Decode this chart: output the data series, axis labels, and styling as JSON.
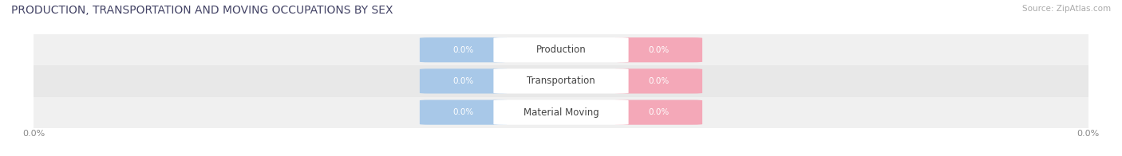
{
  "title": "PRODUCTION, TRANSPORTATION AND MOVING OCCUPATIONS BY SEX",
  "source_text": "Source: ZipAtlas.com",
  "categories": [
    "Production",
    "Transportation",
    "Material Moving"
  ],
  "male_values": [
    0.0,
    0.0,
    0.0
  ],
  "female_values": [
    0.0,
    0.0,
    0.0
  ],
  "male_color": "#a8c8e8",
  "female_color": "#f4a8b8",
  "title_fontsize": 10,
  "axis_label_fontsize": 8,
  "bar_label_fontsize": 7.5,
  "category_fontsize": 8.5,
  "legend_fontsize": 8.5,
  "background_color": "#ffffff",
  "row_bg_colors": [
    "#f0f0f0",
    "#e8e8e8",
    "#f0f0f0"
  ],
  "bar_value_text": "0.0%",
  "x_tick_labels": [
    "0.0%",
    "0.0%"
  ]
}
